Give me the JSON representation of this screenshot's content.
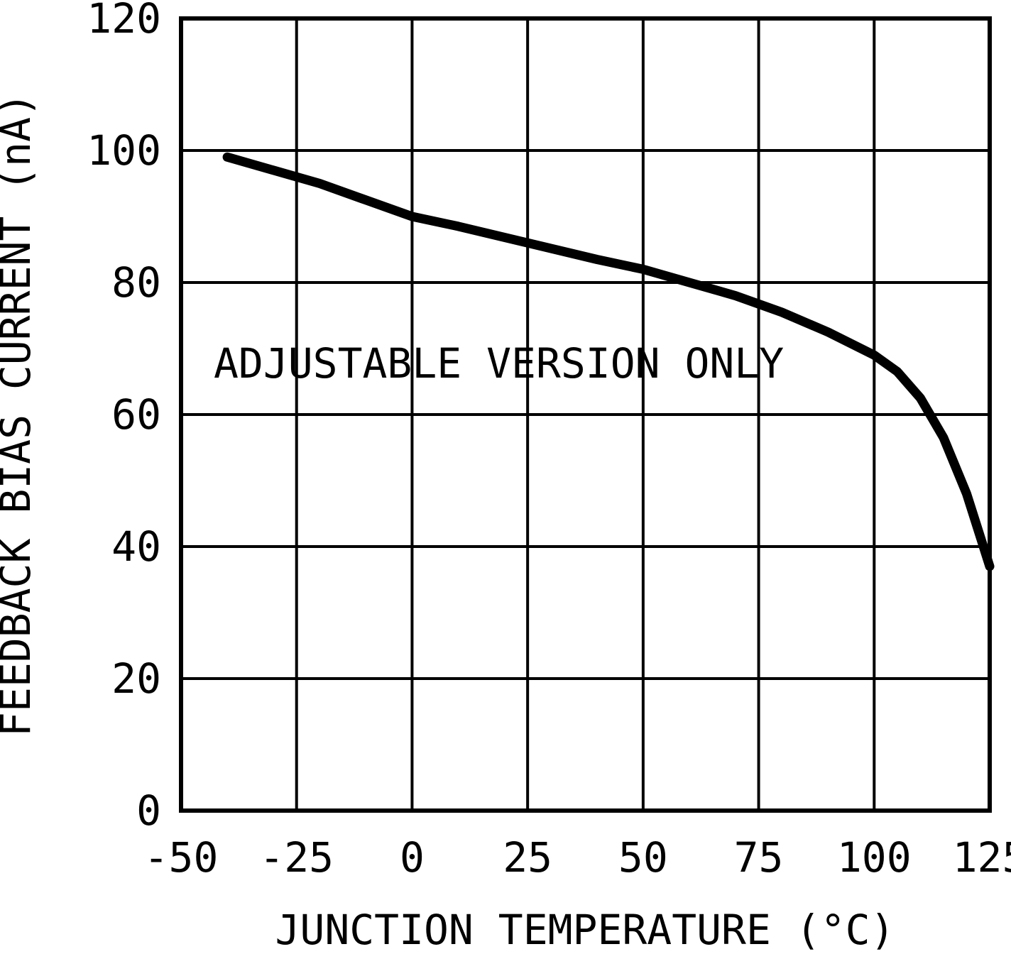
{
  "chart_data": {
    "type": "line",
    "title": "",
    "xlabel": "JUNCTION TEMPERATURE (°C)",
    "ylabel": "FEEDBACK BIAS CURRENT (nA)",
    "annotation": "ADJUSTABLE VERSION ONLY",
    "xlim": [
      -50,
      125
    ],
    "ylim": [
      0,
      120
    ],
    "xticks": [
      "-50",
      "-25",
      "0",
      "25",
      "50",
      "75",
      "100",
      "125"
    ],
    "xtick_values": [
      -50,
      -25,
      0,
      25,
      50,
      75,
      100,
      125
    ],
    "yticks": [
      "0",
      "20",
      "40",
      "60",
      "80",
      "100",
      "120"
    ],
    "ytick_values": [
      0,
      20,
      40,
      60,
      80,
      100,
      120
    ],
    "grid": true,
    "legend": "none",
    "line_color": "#000000",
    "series": [
      {
        "name": "feedback-bias-current",
        "x": [
          -40,
          -30,
          -20,
          -10,
          0,
          10,
          25,
          40,
          50,
          60,
          70,
          80,
          90,
          100,
          105,
          110,
          115,
          120,
          125
        ],
        "y": [
          99,
          97,
          95,
          92.5,
          90,
          88.5,
          86,
          83.5,
          82,
          80,
          78,
          75.5,
          72.5,
          69,
          66.5,
          62.5,
          56.5,
          48,
          37
        ]
      }
    ]
  }
}
